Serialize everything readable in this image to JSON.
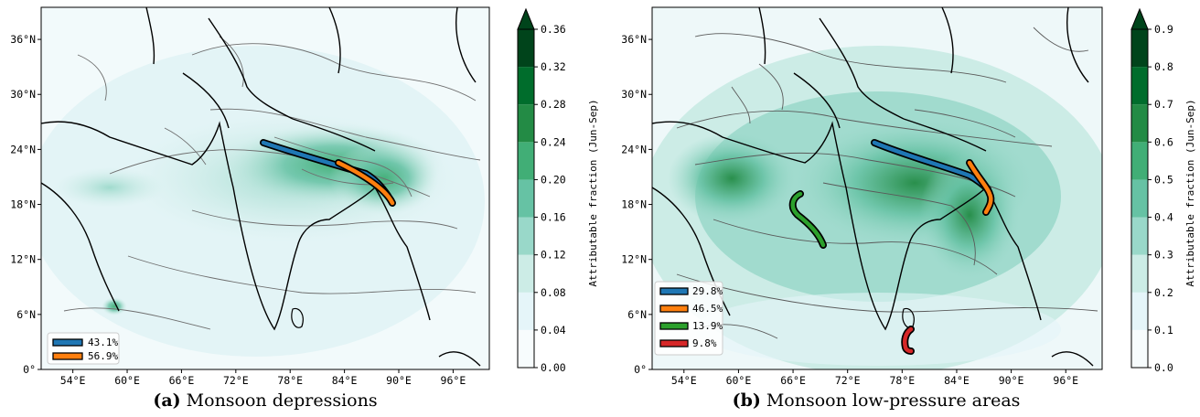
{
  "panels": [
    {
      "id": "a",
      "caption_letter": "(a)",
      "caption_text": "Monsoon depressions",
      "lon_ticks": [
        "54°E",
        "60°E",
        "66°E",
        "72°E",
        "78°E",
        "84°E",
        "90°E",
        "96°E"
      ],
      "lat_ticks": [
        "0°",
        "6°N",
        "12°N",
        "18°N",
        "24°N",
        "30°N",
        "36°N"
      ],
      "colorbar": {
        "label": "Attributable fraction (Jun-Sep)",
        "ticks": [
          "0.00",
          "0.04",
          "0.08",
          "0.12",
          "0.16",
          "0.20",
          "0.24",
          "0.28",
          "0.32",
          "0.36"
        ],
        "extend": "max"
      },
      "legend": [
        {
          "label": "43.1%",
          "color": "#1f77b4"
        },
        {
          "label": "56.9%",
          "color": "#ff7f0e"
        }
      ]
    },
    {
      "id": "b",
      "caption_letter": "(b)",
      "caption_text": "Monsoon low-pressure areas",
      "lon_ticks": [
        "54°E",
        "60°E",
        "66°E",
        "72°E",
        "78°E",
        "84°E",
        "90°E",
        "96°E"
      ],
      "lat_ticks": [
        "0°",
        "6°N",
        "12°N",
        "18°N",
        "24°N",
        "30°N",
        "36°N"
      ],
      "colorbar": {
        "label": "Attributable fraction (Jun-Sep)",
        "ticks": [
          "0.0",
          "0.1",
          "0.2",
          "0.3",
          "0.4",
          "0.5",
          "0.6",
          "0.7",
          "0.8",
          "0.9"
        ],
        "extend": "max"
      },
      "legend": [
        {
          "label": "29.8%",
          "color": "#1f77b4"
        },
        {
          "label": "46.5%",
          "color": "#ff7f0e"
        },
        {
          "label": "13.9%",
          "color": "#2ca02c"
        },
        {
          "label": "9.8%",
          "color": "#d62728"
        }
      ]
    }
  ],
  "colormap": [
    "#f7fcfd",
    "#e5f5f9",
    "#ccece6",
    "#99d8c9",
    "#66c2a4",
    "#41ae76",
    "#238b45",
    "#006d2c",
    "#00441b"
  ]
}
